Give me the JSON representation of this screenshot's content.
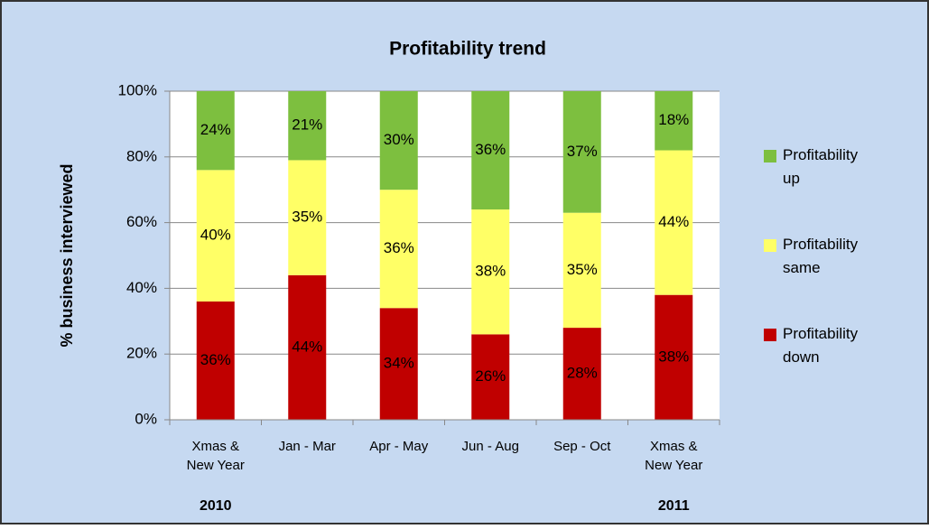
{
  "chart_data": {
    "type": "stacked_bar",
    "title": "Profitability trend",
    "y_label": "% business interviewed",
    "categories": [
      "Xmas & New Year",
      "Jan - Mar",
      "Apr - May",
      "Jun - Aug",
      "Sep - Oct",
      "Xmas & New Year"
    ],
    "annotations": [
      "2010",
      "2011"
    ],
    "series": [
      {
        "name": "Profitability down",
        "color": "#c00000",
        "values": [
          36,
          44,
          34,
          26,
          28,
          38
        ],
        "value_labels": [
          "36%",
          "44%",
          "34%",
          "26%",
          "28%",
          "38%"
        ]
      },
      {
        "name": "Profitability same",
        "color": "#ffff66",
        "values": [
          40,
          35,
          36,
          38,
          35,
          44
        ],
        "value_labels": [
          "40%",
          "35%",
          "36%",
          "38%",
          "35%",
          "44%"
        ]
      },
      {
        "name": "Profitability up",
        "color": "#7dbf3f",
        "values": [
          24,
          21,
          30,
          36,
          37,
          18
        ],
        "value_labels": [
          "24%",
          "21%",
          "30%",
          "36%",
          "37%",
          "18%"
        ]
      }
    ],
    "ylim": [
      0,
      100
    ],
    "yticks": [
      {
        "value": 0,
        "label": "0%"
      },
      {
        "value": 20,
        "label": "20%"
      },
      {
        "value": 40,
        "label": "40%"
      },
      {
        "value": 60,
        "label": "60%"
      },
      {
        "value": 80,
        "label": "80%"
      },
      {
        "value": 100,
        "label": "100%"
      }
    ],
    "grid": true,
    "legend": "right"
  }
}
